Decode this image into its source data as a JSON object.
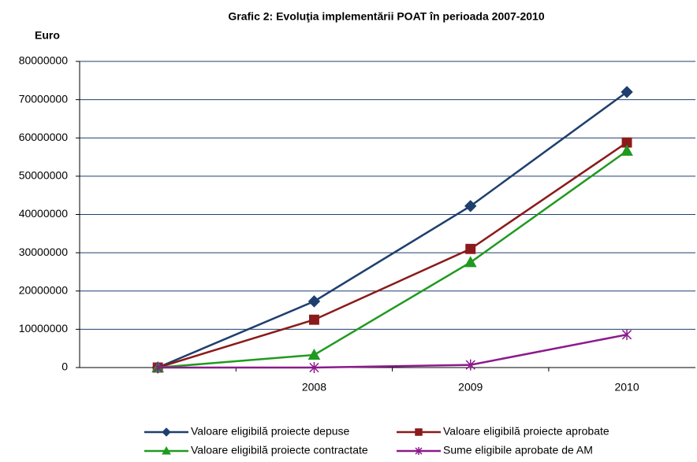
{
  "chart_data": {
    "type": "line",
    "title": "Grafic 2: Evoluţia implementării POAT în perioada 2007-2010",
    "y_label": "Euro",
    "categories": [
      null,
      "2008",
      "2009",
      "2010"
    ],
    "series": [
      {
        "name": "Valoare eligibilă proiecte depuse",
        "color": "#1f3f6e",
        "marker": "diamond",
        "values": [
          0,
          17300000,
          42200000,
          72000000
        ]
      },
      {
        "name": "Valoare eligibilă proiecte aprobate",
        "color": "#8b1a1a",
        "marker": "square",
        "values": [
          0,
          12500000,
          31000000,
          58800000
        ]
      },
      {
        "name": "Valoare eligibilă proiecte contractate",
        "color": "#1f9a1f",
        "marker": "triangle",
        "values": [
          0,
          3300000,
          27500000,
          56600000
        ]
      },
      {
        "name": "Sume eligibile aprobate de AM",
        "color": "#8b1a8b",
        "marker": "star",
        "values": [
          0,
          0,
          700000,
          8600000
        ]
      }
    ],
    "ylim": [
      0,
      80000000
    ],
    "yticks": [
      0,
      10000000,
      20000000,
      30000000,
      40000000,
      50000000,
      60000000,
      70000000,
      80000000
    ],
    "grid": true,
    "legend": "bottom"
  }
}
